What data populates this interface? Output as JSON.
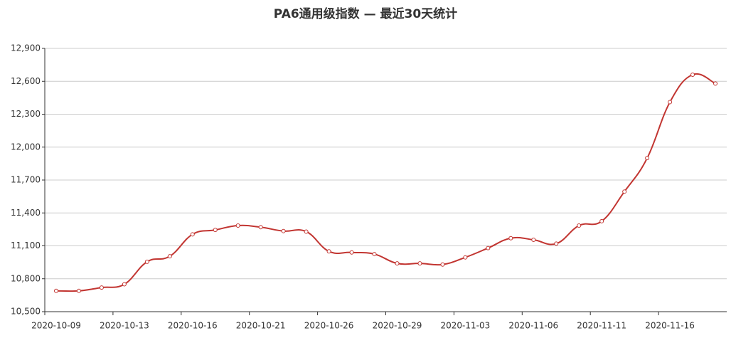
{
  "chart_data": {
    "type": "line",
    "title": "PA6通用级指数 — 最近30天统计",
    "categories": [
      "2020-10-09",
      null,
      null,
      "2020-10-13",
      null,
      null,
      "2020-10-16",
      null,
      null,
      "2020-10-21",
      null,
      null,
      "2020-10-26",
      null,
      null,
      "2020-10-29",
      null,
      null,
      "2020-11-03",
      null,
      null,
      "2020-11-06",
      null,
      null,
      "2020-11-11",
      null,
      null,
      "2020-11-16",
      null,
      null
    ],
    "values": [
      10690,
      10690,
      10720,
      10750,
      10955,
      11005,
      11205,
      11245,
      11285,
      11270,
      11235,
      11230,
      11050,
      11040,
      11025,
      10940,
      10940,
      10930,
      10995,
      11080,
      11170,
      11155,
      11120,
      11285,
      11325,
      11595,
      11900,
      12410,
      12660,
      12580
    ],
    "color": "#c23531",
    "ylim": [
      10500,
      12900
    ],
    "yticks": [
      {
        "value": 10500,
        "label": "10,500"
      },
      {
        "value": 10800,
        "label": "10,800"
      },
      {
        "value": 11100,
        "label": "11,100"
      },
      {
        "value": 11400,
        "label": "11,400"
      },
      {
        "value": 11700,
        "label": "11,700"
      },
      {
        "value": 12000,
        "label": "12,000"
      },
      {
        "value": 12300,
        "label": "12,300"
      },
      {
        "value": 12600,
        "label": "12,600"
      },
      {
        "value": 12900,
        "label": "12,900"
      }
    ],
    "grid": true
  }
}
